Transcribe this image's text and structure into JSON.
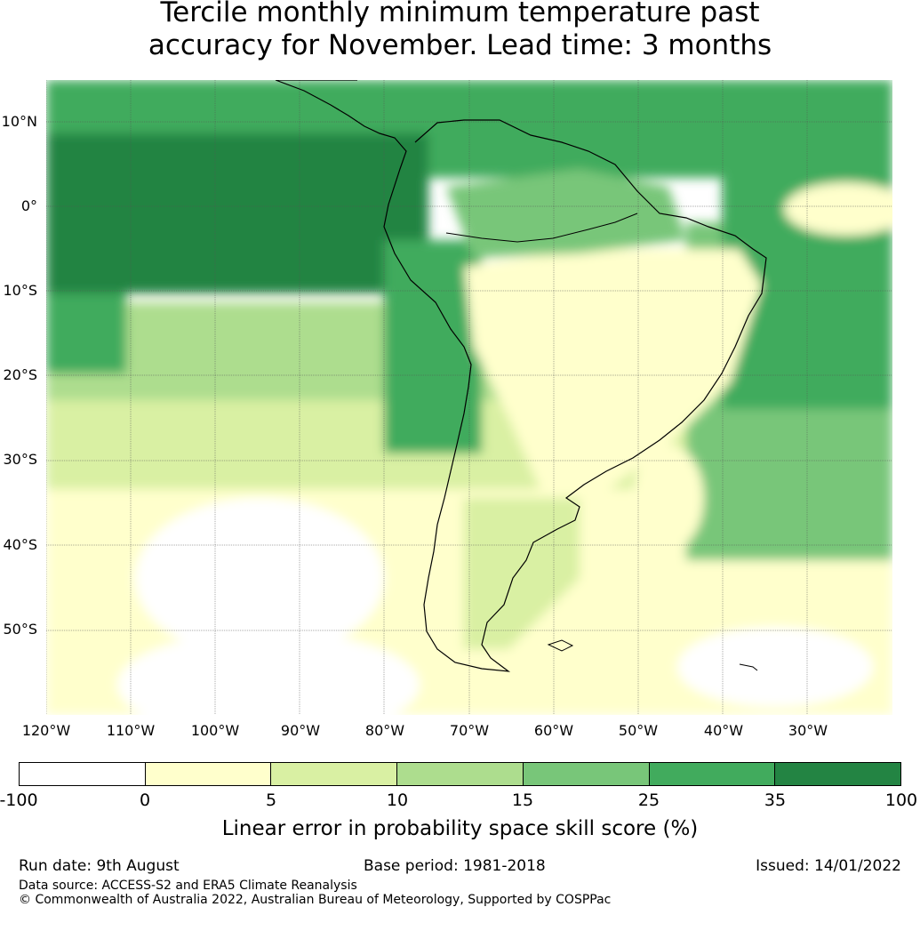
{
  "title_line1": "Tercile monthly minimum temperature past",
  "title_line2": "accuracy for November. Lead time: 3 months",
  "map": {
    "region": "South America",
    "lat_labels": [
      "10°N",
      "0°",
      "10°S",
      "20°S",
      "30°S",
      "40°S",
      "50°S"
    ],
    "lon_labels": [
      "120°W",
      "110°W",
      "100°W",
      "90°W",
      "80°W",
      "70°W",
      "60°W",
      "50°W",
      "40°W",
      "30°W"
    ]
  },
  "colorbar": {
    "title": "Linear error in probability space skill score (%)",
    "ticks": [
      "-100",
      "0",
      "5",
      "10",
      "15",
      "25",
      "35",
      "100"
    ],
    "colors": [
      "#ffffff",
      "#ffffcc",
      "#d9f0a3",
      "#addd8e",
      "#78c679",
      "#41ab5d",
      "#238443"
    ]
  },
  "footer": {
    "run_date": "Run date: 9th August",
    "base_period": "Base period: 1981-2018",
    "issued": "Issued: 14/01/2022",
    "data_source": "Data source: ACCESS-S2 and ERA5 Climate Reanalysis",
    "copyright": "© Commonwealth of Australia 2022, Australian Bureau of Meteorology, Supported by COSPPac"
  }
}
